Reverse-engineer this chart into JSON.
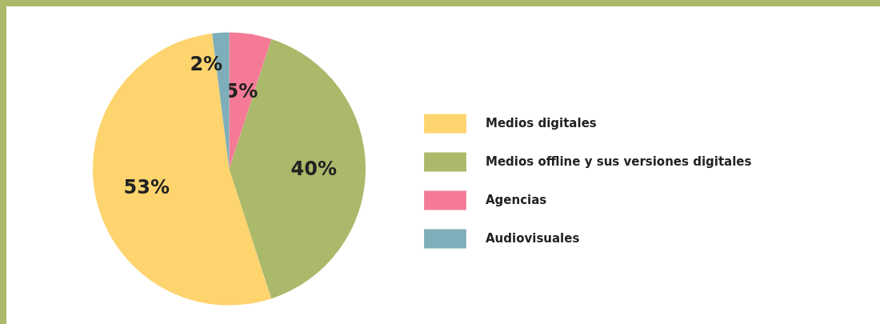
{
  "chart_data": {
    "type": "pie",
    "categories": [
      "Medios digitales",
      "Medios offline y sus versiones digitales",
      "Agencias",
      "Audiovisuales"
    ],
    "values": [
      53,
      40,
      5,
      2
    ],
    "colors": [
      "#fed46e",
      "#abb96a",
      "#f47a96",
      "#7eaeb9"
    ],
    "value_labels": [
      "53%",
      "40%",
      "5%",
      "2%"
    ],
    "legend": "right"
  }
}
